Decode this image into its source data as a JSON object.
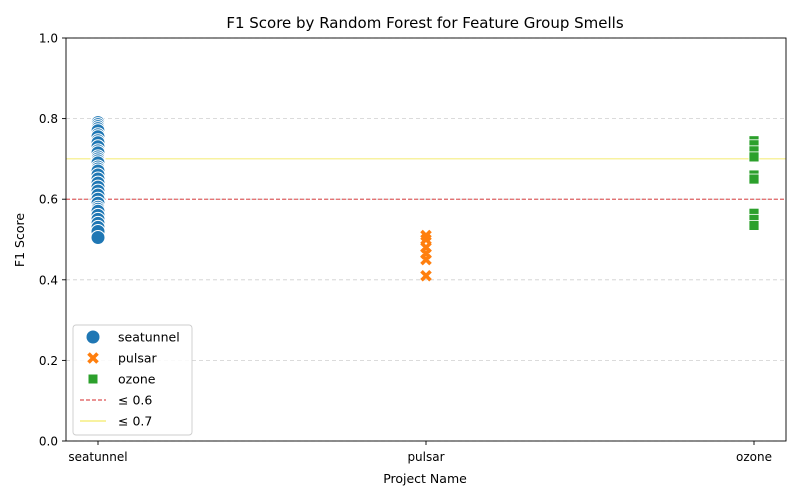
{
  "chart_data": {
    "type": "scatter",
    "title": "F1 Score by Random Forest for  Feature Group Smells",
    "xlabel": "Project Name",
    "ylabel": "F1 Score",
    "categories": [
      "seatunnel",
      "pulsar",
      "ozone"
    ],
    "ylim": [
      0,
      1.0
    ],
    "yticks": [
      "0.0",
      "0.2",
      "0.4",
      "0.6",
      "0.8",
      "1.0"
    ],
    "ytick_values": [
      0.0,
      0.2,
      0.4,
      0.6,
      0.8,
      1.0
    ],
    "grid": "horizontal dashed",
    "legend_position": "lower-left",
    "series": [
      {
        "name": "seatunnel",
        "category": "seatunnel",
        "marker": "circle",
        "color": "#1f77b4",
        "values": [
          0.79,
          0.785,
          0.78,
          0.775,
          0.77,
          0.76,
          0.755,
          0.745,
          0.74,
          0.73,
          0.72,
          0.715,
          0.705,
          0.7,
          0.695,
          0.69,
          0.68,
          0.675,
          0.67,
          0.66,
          0.65,
          0.64,
          0.63,
          0.62,
          0.61,
          0.6,
          0.59,
          0.58,
          0.575,
          0.57,
          0.56,
          0.55,
          0.54,
          0.53,
          0.52,
          0.505
        ]
      },
      {
        "name": "pulsar",
        "category": "pulsar",
        "marker": "x",
        "color": "#ff7f0e",
        "values": [
          0.51,
          0.5,
          0.48,
          0.465,
          0.45,
          0.41
        ]
      },
      {
        "name": "ozone",
        "category": "ozone",
        "marker": "square",
        "color": "#2ca02c",
        "values": [
          0.745,
          0.735,
          0.72,
          0.705,
          0.66,
          0.65,
          0.565,
          0.55,
          0.535
        ]
      }
    ],
    "reference_lines": [
      {
        "name": "≤ 0.6",
        "value": 0.6,
        "color": "#d62728",
        "style": "dashed"
      },
      {
        "name": "≤ 0.7",
        "value": 0.7,
        "color": "#f0e442",
        "style": "solid"
      }
    ]
  }
}
